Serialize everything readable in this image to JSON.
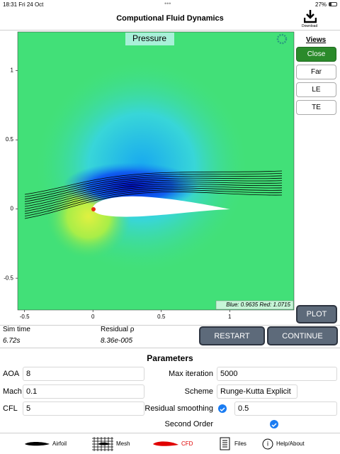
{
  "status_bar": {
    "time": "18:31",
    "date": "Fri 24 Oct",
    "battery": "27%"
  },
  "header": {
    "title": "Computional Fluid Dynamics",
    "download": "Download"
  },
  "plot": {
    "label": "Pressure",
    "xlim": [
      -0.55,
      1.47
    ],
    "ylim": [
      -0.73,
      1.28
    ],
    "xticks": [
      -0.5,
      0,
      0.5,
      1
    ],
    "yticks": [
      -0.5,
      0,
      0.5,
      1
    ],
    "range_text": "Blue: 0.9635 Red: 1.0715"
  },
  "views": {
    "title": "Views",
    "buttons": [
      "Close",
      "Far",
      "LE",
      "TE"
    ],
    "selected": 0
  },
  "plot_button": "PLOT",
  "status": {
    "sim_time_label": "Sim time",
    "sim_time": "6.72s",
    "residual_label": "Residual ρ",
    "residual": "8.36e-005"
  },
  "actions": [
    "RESTART",
    "CONTINUE"
  ],
  "parameters": {
    "title": "Parameters",
    "aoa": {
      "label": "AOA",
      "value": 8
    },
    "mach": {
      "label": "Mach",
      "value": 0.1
    },
    "cfl": {
      "label": "CFL",
      "value": 5
    },
    "max_iteration": {
      "label": "Max iteration",
      "value": 5000
    },
    "scheme": {
      "label": "Scheme",
      "value": "Runge-Kutta Explicit"
    },
    "residual_smoothing": {
      "label": "Residual smoothing",
      "value": 0.5
    },
    "second_order": {
      "label": "Second Order"
    }
  },
  "tabs": [
    "Airfoil",
    "Mesh",
    "CFD",
    "Files",
    "Help/About"
  ]
}
